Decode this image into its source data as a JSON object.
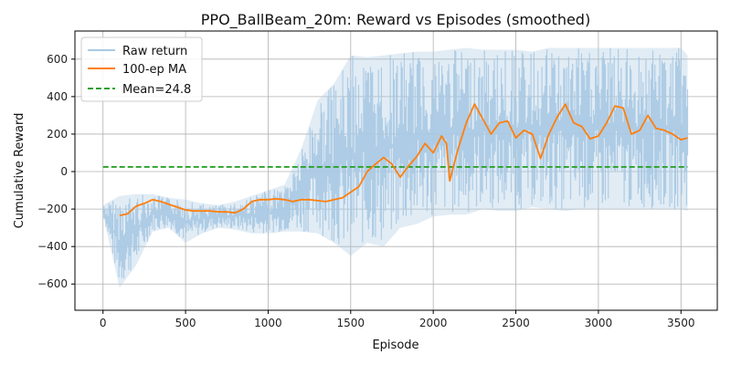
{
  "chart_data": {
    "type": "line",
    "title": "PPO_BallBeam_20m: Reward vs Episodes (smoothed)",
    "xlabel": "Episode",
    "ylabel": "Cumulative Reward",
    "xlim": [
      -170,
      3720
    ],
    "ylim": [
      -740,
      750
    ],
    "xticks": [
      0,
      500,
      1000,
      1500,
      2000,
      2500,
      3000,
      3500
    ],
    "yticks": [
      -600,
      -400,
      -200,
      0,
      200,
      400,
      600
    ],
    "grid": true,
    "legend_position": "top-left",
    "series": [
      {
        "name": "Raw return",
        "color": "#a9c9e3",
        "style": "band",
        "note_envelope_by_episode": true,
        "x": [
          0,
          100,
          200,
          300,
          400,
          500,
          600,
          700,
          800,
          900,
          1000,
          1100,
          1200,
          1300,
          1400,
          1500,
          1600,
          1700,
          1800,
          1900,
          2000,
          2100,
          2200,
          2300,
          2400,
          2500,
          2600,
          2700,
          2800,
          2900,
          3000,
          3100,
          3200,
          3300,
          3400,
          3500,
          3540
        ],
        "upper": [
          -180,
          -130,
          -120,
          -120,
          -140,
          -150,
          -170,
          -180,
          -160,
          -130,
          -100,
          -70,
          120,
          380,
          470,
          620,
          610,
          620,
          630,
          640,
          640,
          650,
          660,
          650,
          650,
          650,
          640,
          660,
          660,
          660,
          660,
          660,
          660,
          660,
          660,
          660,
          620
        ],
        "lower": [
          -230,
          -620,
          -500,
          -320,
          -300,
          -380,
          -330,
          -300,
          -310,
          -330,
          -330,
          -320,
          -320,
          -330,
          -380,
          -450,
          -380,
          -400,
          -300,
          -280,
          -240,
          -230,
          -230,
          -200,
          -210,
          -210,
          -190,
          -200,
          -210,
          -200,
          -200,
          -200,
          -200,
          -200,
          -200,
          -200,
          -210
        ]
      },
      {
        "name": "100-ep MA",
        "color": "#ff7f0e",
        "style": "solid",
        "x": [
          100,
          150,
          200,
          250,
          300,
          350,
          400,
          450,
          500,
          550,
          600,
          650,
          700,
          750,
          800,
          850,
          900,
          950,
          1000,
          1050,
          1100,
          1150,
          1200,
          1250,
          1300,
          1350,
          1400,
          1450,
          1500,
          1550,
          1600,
          1650,
          1700,
          1750,
          1800,
          1850,
          1900,
          1950,
          2000,
          2050,
          2080,
          2100,
          2150,
          2200,
          2250,
          2300,
          2350,
          2400,
          2450,
          2500,
          2550,
          2600,
          2650,
          2700,
          2750,
          2800,
          2850,
          2900,
          2950,
          3000,
          3050,
          3100,
          3150,
          3200,
          3250,
          3300,
          3350,
          3400,
          3450,
          3500,
          3540
        ],
        "values": [
          -235,
          -225,
          -185,
          -170,
          -150,
          -160,
          -175,
          -190,
          -205,
          -210,
          -210,
          -210,
          -215,
          -215,
          -220,
          -200,
          -160,
          -150,
          -150,
          -145,
          -150,
          -160,
          -150,
          -150,
          -155,
          -160,
          -150,
          -140,
          -110,
          -80,
          0,
          40,
          75,
          40,
          -30,
          30,
          80,
          150,
          100,
          190,
          150,
          -50,
          120,
          260,
          360,
          280,
          200,
          260,
          270,
          180,
          220,
          200,
          70,
          200,
          290,
          360,
          260,
          240,
          175,
          190,
          260,
          350,
          340,
          200,
          220,
          300,
          230,
          220,
          200,
          170,
          180
        ]
      },
      {
        "name": "Mean=24.8",
        "color": "#2ca02c",
        "style": "dashed",
        "x": [
          0,
          3540
        ],
        "values": [
          24.8,
          24.8
        ]
      }
    ]
  }
}
